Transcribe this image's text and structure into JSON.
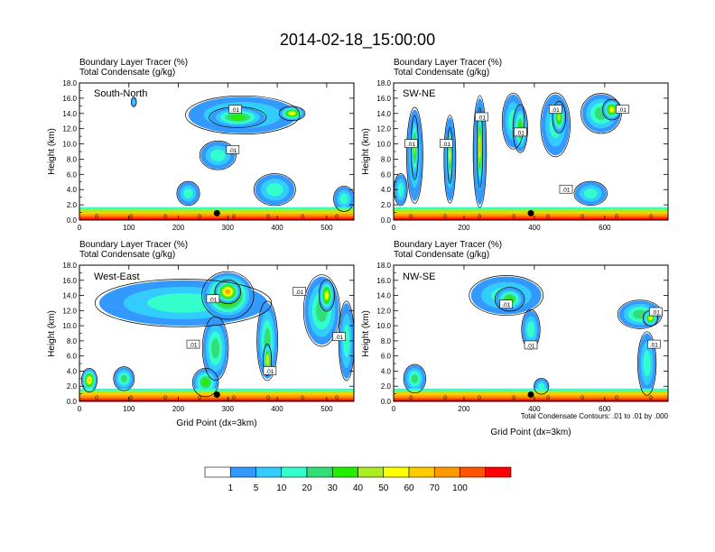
{
  "title": "2014-02-18_15:00:00",
  "subtitle_line1": "Boundary Layer Tracer   (%)",
  "subtitle_line2": "Total Condensate   (g/kg)",
  "ylabel": "Height (km)",
  "xlabel": "Grid Point (dx=3km)",
  "contour_note": "Total Condensate Contours: .01 to .01 by .000",
  "contour_label": ".01",
  "zero_label": "0",
  "colorbar": {
    "levels": [
      "1",
      "5",
      "10",
      "20",
      "30",
      "40",
      "50",
      "60",
      "70",
      "100"
    ],
    "colors": [
      "#ffffff",
      "#3399ff",
      "#33ccff",
      "#33ffcc",
      "#33dd77",
      "#22ee00",
      "#aaee22",
      "#ffff00",
      "#ffcc00",
      "#ff9900",
      "#ff5500",
      "#ff0000"
    ]
  },
  "chart_data": [
    {
      "type": "heatmap",
      "panel": "South-North",
      "xlim": [
        0,
        555
      ],
      "ylim": [
        0,
        18
      ],
      "xticks": [
        0,
        100,
        200,
        300,
        400,
        500
      ],
      "yticks": [
        "0.0",
        "2.0",
        "4.0",
        "6.0",
        "8.0",
        "10.0",
        "12.0",
        "14.0",
        "16.0",
        "18.0"
      ],
      "marker_x": 278,
      "blobs": [
        {
          "x": 330,
          "y": 13.8,
          "rx": 110,
          "ry": 2.4,
          "lv": 3
        },
        {
          "x": 320,
          "y": 13.5,
          "rx": 55,
          "ry": 1.3,
          "lv": 5
        },
        {
          "x": 430,
          "y": 14.0,
          "rx": 25,
          "ry": 0.9,
          "lv": 7
        },
        {
          "x": 280,
          "y": 8.5,
          "rx": 35,
          "ry": 1.8,
          "lv": 3
        },
        {
          "x": 220,
          "y": 3.5,
          "rx": 22,
          "ry": 1.5,
          "lv": 3
        },
        {
          "x": 395,
          "y": 4.0,
          "rx": 40,
          "ry": 2.0,
          "lv": 3
        },
        {
          "x": 535,
          "y": 2.8,
          "rx": 20,
          "ry": 1.6,
          "lv": 3
        },
        {
          "x": 110,
          "y": 15.5,
          "rx": 5,
          "ry": 0.6,
          "lv": 2
        }
      ],
      "contour_labels": [
        {
          "x": 315,
          "y": 14.5
        },
        {
          "x": 310,
          "y": 9.2
        }
      ]
    },
    {
      "type": "heatmap",
      "panel": "SW-NE",
      "xlim": [
        0,
        780
      ],
      "ylim": [
        0,
        18
      ],
      "xticks": [
        0,
        200,
        400,
        600
      ],
      "yticks": [
        "0.0",
        "2.0",
        "4.0",
        "6.0",
        "8.0",
        "10.0",
        "12.0",
        "14.0",
        "16.0",
        "18.0"
      ],
      "marker_x": 390,
      "blobs": [
        {
          "x": 60,
          "y": 8.5,
          "rx": 22,
          "ry": 6.0,
          "lv": 3
        },
        {
          "x": 60,
          "y": 9.5,
          "rx": 10,
          "ry": 4.0,
          "lv": 6
        },
        {
          "x": 160,
          "y": 8.0,
          "rx": 16,
          "ry": 5.5,
          "lv": 3
        },
        {
          "x": 160,
          "y": 8.5,
          "rx": 7,
          "ry": 3.5,
          "lv": 7
        },
        {
          "x": 245,
          "y": 9.0,
          "rx": 18,
          "ry": 7.0,
          "lv": 3
        },
        {
          "x": 245,
          "y": 9.5,
          "rx": 8,
          "ry": 5.0,
          "lv": 8
        },
        {
          "x": 340,
          "y": 13.0,
          "rx": 30,
          "ry": 3.5,
          "lv": 3
        },
        {
          "x": 360,
          "y": 12.0,
          "rx": 20,
          "ry": 3.0,
          "lv": 5
        },
        {
          "x": 460,
          "y": 12.5,
          "rx": 40,
          "ry": 4.0,
          "lv": 3
        },
        {
          "x": 470,
          "y": 13.5,
          "rx": 18,
          "ry": 2.0,
          "lv": 6
        },
        {
          "x": 590,
          "y": 14.0,
          "rx": 55,
          "ry": 2.5,
          "lv": 4
        },
        {
          "x": 620,
          "y": 14.5,
          "rx": 25,
          "ry": 1.3,
          "lv": 7
        },
        {
          "x": 560,
          "y": 3.5,
          "rx": 45,
          "ry": 1.5,
          "lv": 3
        },
        {
          "x": 20,
          "y": 4.0,
          "rx": 18,
          "ry": 2.0,
          "lv": 3
        }
      ],
      "contour_labels": [
        {
          "x": 50,
          "y": 10.0
        },
        {
          "x": 150,
          "y": 10.0
        },
        {
          "x": 250,
          "y": 13.5
        },
        {
          "x": 360,
          "y": 11.5
        },
        {
          "x": 460,
          "y": 14.5
        },
        {
          "x": 490,
          "y": 4.0
        },
        {
          "x": 650,
          "y": 14.5
        }
      ]
    },
    {
      "type": "heatmap",
      "panel": "West-East",
      "xlim": [
        0,
        555
      ],
      "ylim": [
        0,
        18
      ],
      "xticks": [
        0,
        100,
        200,
        300,
        400,
        500
      ],
      "yticks": [
        "0.0",
        "2.0",
        "4.0",
        "6.0",
        "8.0",
        "10.0",
        "12.0",
        "14.0",
        "16.0",
        "18.0"
      ],
      "marker_x": 278,
      "blobs": [
        {
          "x": 210,
          "y": 13.0,
          "rx": 170,
          "ry": 3.0,
          "lv": 3
        },
        {
          "x": 300,
          "y": 14.0,
          "rx": 50,
          "ry": 3.0,
          "lv": 7
        },
        {
          "x": 300,
          "y": 14.5,
          "rx": 25,
          "ry": 1.5,
          "lv": 9
        },
        {
          "x": 275,
          "y": 7.0,
          "rx": 25,
          "ry": 4.0,
          "lv": 4
        },
        {
          "x": 380,
          "y": 8.0,
          "rx": 20,
          "ry": 5.0,
          "lv": 4
        },
        {
          "x": 380,
          "y": 5.5,
          "rx": 8,
          "ry": 2.0,
          "lv": 8
        },
        {
          "x": 490,
          "y": 12.0,
          "rx": 35,
          "ry": 4.5,
          "lv": 4
        },
        {
          "x": 500,
          "y": 14.0,
          "rx": 15,
          "ry": 2.0,
          "lv": 7
        },
        {
          "x": 540,
          "y": 8.0,
          "rx": 15,
          "ry": 5.0,
          "lv": 3
        },
        {
          "x": 20,
          "y": 2.8,
          "rx": 15,
          "ry": 1.5,
          "lv": 8
        },
        {
          "x": 90,
          "y": 3.0,
          "rx": 20,
          "ry": 1.5,
          "lv": 4
        },
        {
          "x": 255,
          "y": 2.5,
          "rx": 25,
          "ry": 1.8,
          "lv": 5
        }
      ],
      "contour_labels": [
        {
          "x": 270,
          "y": 13.5
        },
        {
          "x": 445,
          "y": 14.5
        },
        {
          "x": 230,
          "y": 7.5
        },
        {
          "x": 385,
          "y": 4.0
        },
        {
          "x": 525,
          "y": 8.5
        }
      ]
    },
    {
      "type": "heatmap",
      "panel": "NW-SE",
      "xlim": [
        0,
        780
      ],
      "ylim": [
        0,
        18
      ],
      "xticks": [
        0,
        200,
        400,
        600
      ],
      "yticks": [
        "0.0",
        "2.0",
        "4.0",
        "6.0",
        "8.0",
        "10.0",
        "12.0",
        "14.0",
        "16.0",
        "18.0"
      ],
      "marker_x": 390,
      "blobs": [
        {
          "x": 320,
          "y": 14.0,
          "rx": 100,
          "ry": 2.5,
          "lv": 3
        },
        {
          "x": 330,
          "y": 13.5,
          "rx": 40,
          "ry": 1.5,
          "lv": 5
        },
        {
          "x": 390,
          "y": 9.5,
          "rx": 25,
          "ry": 2.5,
          "lv": 3
        },
        {
          "x": 700,
          "y": 11.5,
          "rx": 60,
          "ry": 1.8,
          "lv": 4
        },
        {
          "x": 730,
          "y": 11.0,
          "rx": 20,
          "ry": 1.0,
          "lv": 7
        },
        {
          "x": 720,
          "y": 5.0,
          "rx": 25,
          "ry": 4.0,
          "lv": 3
        },
        {
          "x": 60,
          "y": 3.0,
          "rx": 30,
          "ry": 1.8,
          "lv": 4
        },
        {
          "x": 420,
          "y": 2.0,
          "rx": 20,
          "ry": 1.0,
          "lv": 3
        }
      ],
      "contour_labels": [
        {
          "x": 320,
          "y": 12.8
        },
        {
          "x": 390,
          "y": 7.4
        },
        {
          "x": 745,
          "y": 11.8
        },
        {
          "x": 740,
          "y": 7.5
        }
      ]
    }
  ]
}
